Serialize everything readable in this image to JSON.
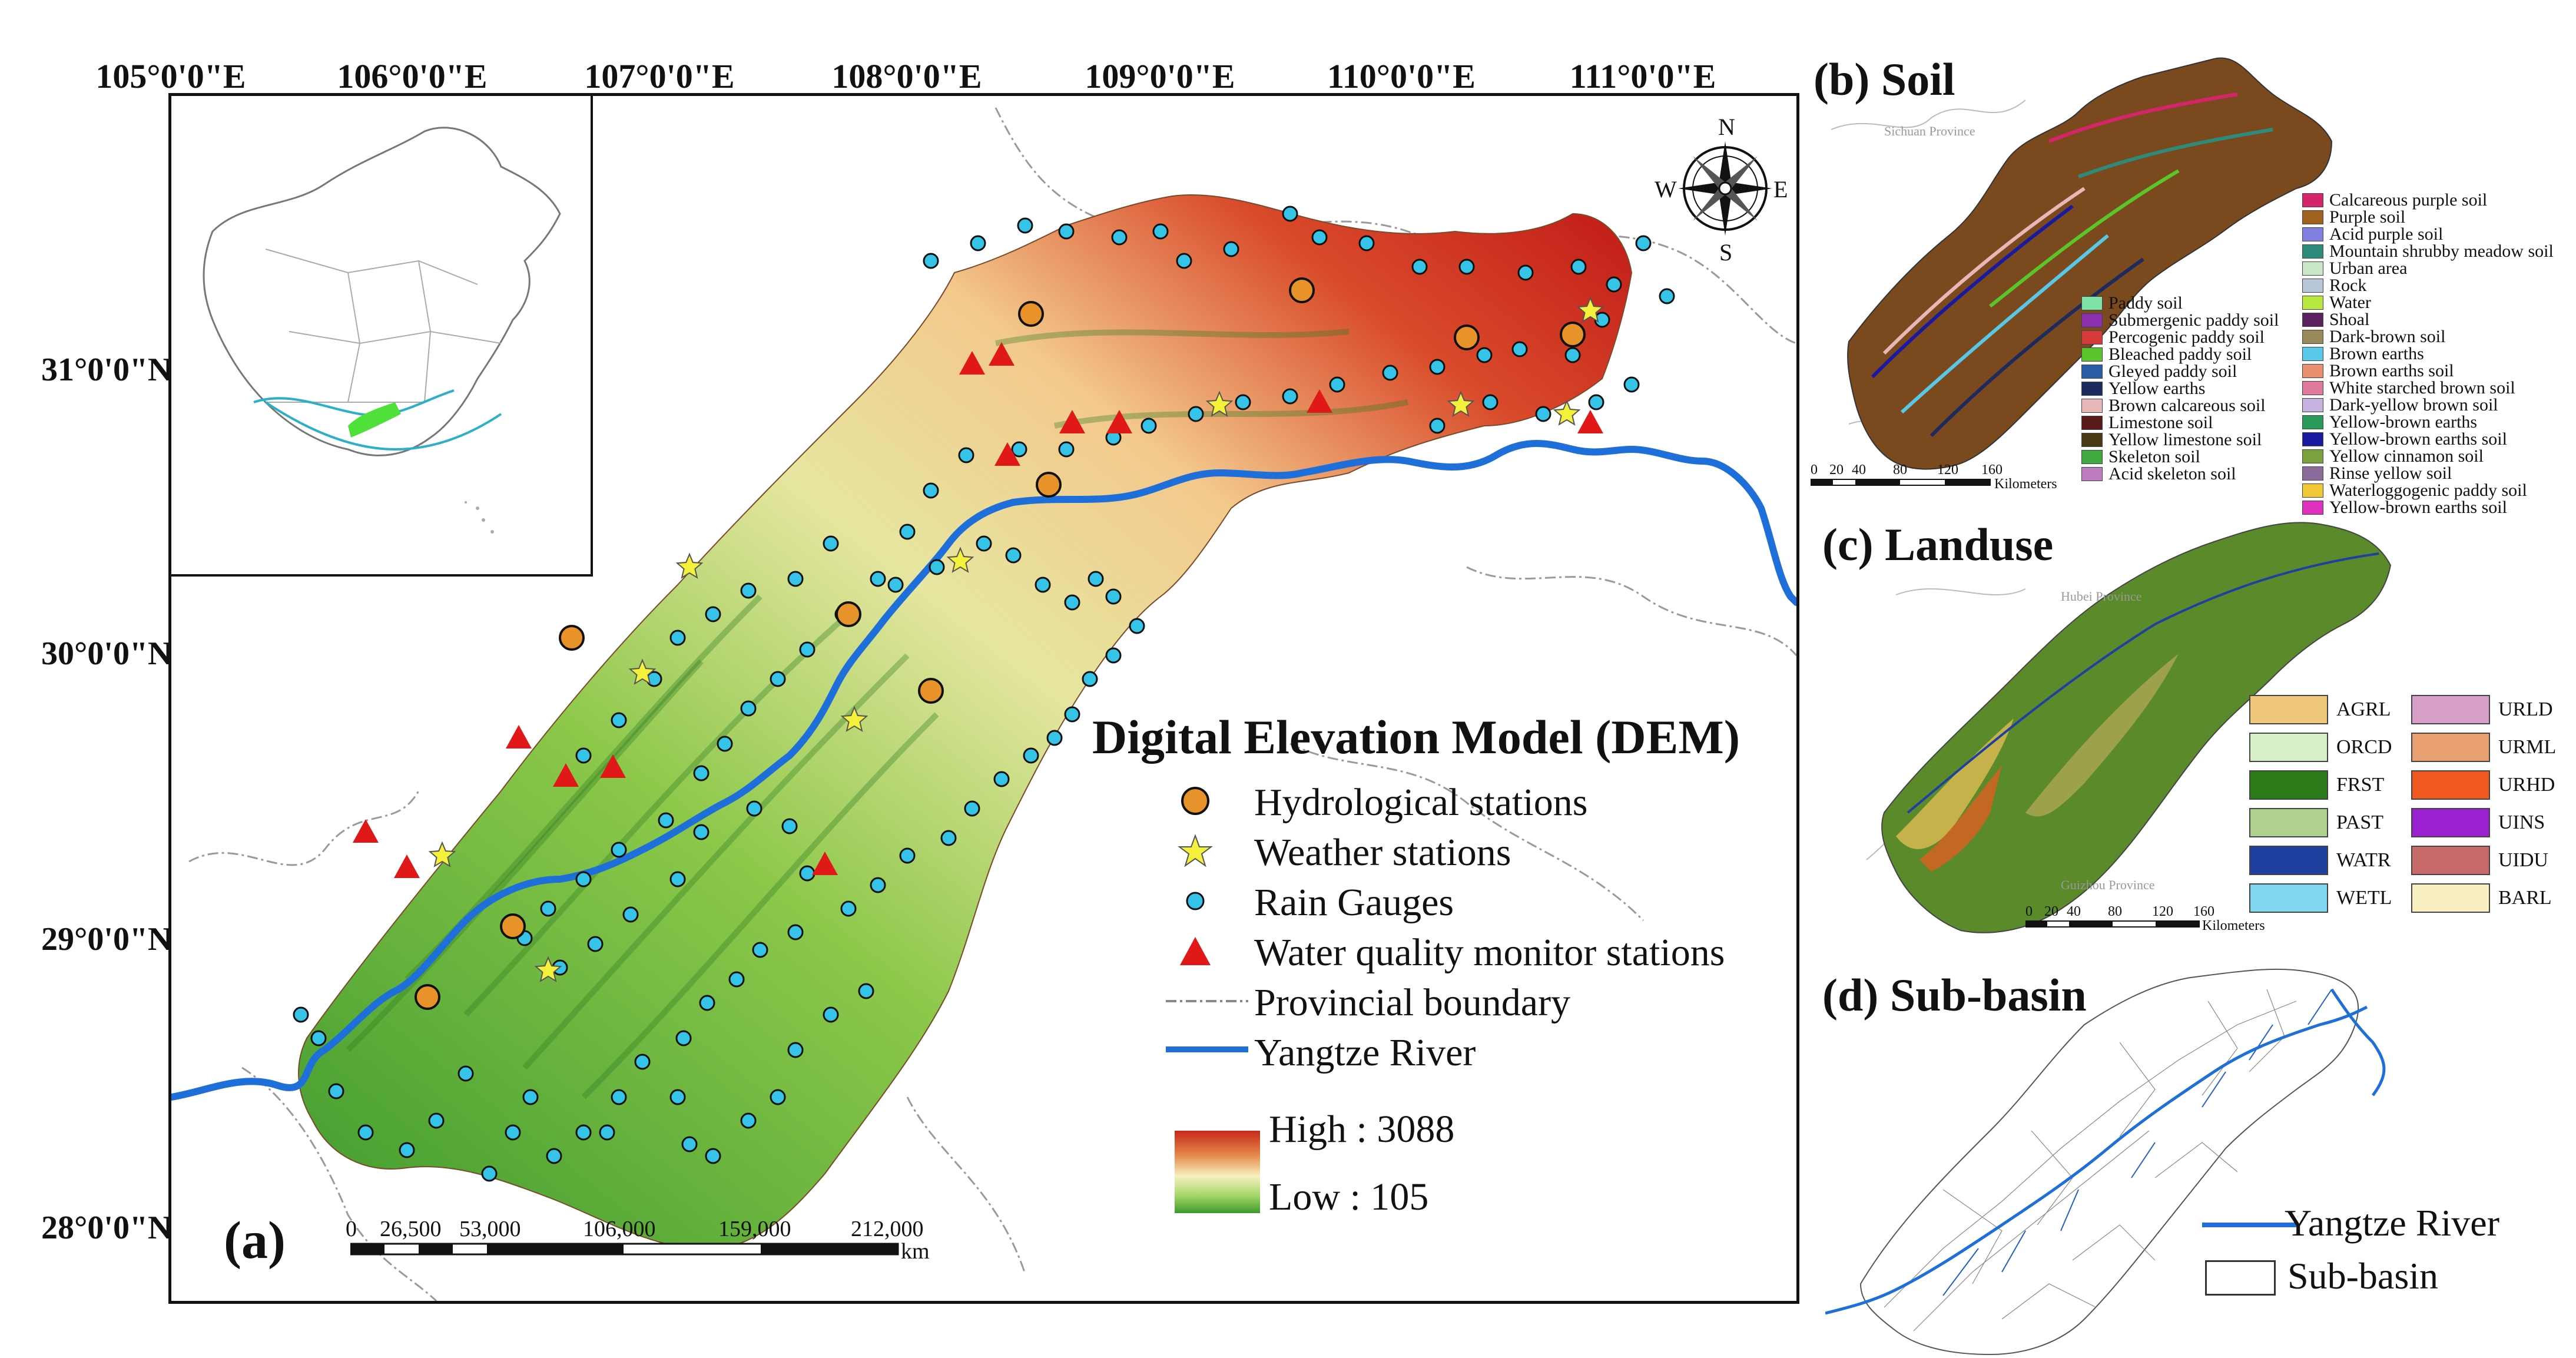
{
  "main_panel": {
    "panel_label": "(a)",
    "longitude_ticks": [
      "105°0'0\"E",
      "106°0'0\"E",
      "107°0'0\"E",
      "108°0'0\"E",
      "109°0'0\"E",
      "110°0'0\"E",
      "111°0'0\"E"
    ],
    "latitude_ticks": [
      "31°0'0\"N",
      "30°0'0\"N",
      "29°0'0\"N",
      "28°0'0\"N"
    ],
    "compass": {
      "n": "N",
      "s": "S",
      "e": "E",
      "w": "W"
    },
    "legend": {
      "title": "Digital Elevation Model (DEM)",
      "hydrological": "Hydrological stations",
      "weather": "Weather stations",
      "rain": "Rain Gauges",
      "water_quality": "Water quality monitor stations",
      "boundary": "Provincial boundary",
      "river": "Yangtze River",
      "high": "High : 3088",
      "low": "Low : 105"
    },
    "scale": {
      "ticks": [
        "0",
        "26,500",
        "53,000",
        "106,000",
        "159,000",
        "212,000"
      ],
      "unit": "km"
    },
    "colors": {
      "river": "#1e6fd9",
      "hydro": "#e8922a",
      "weather": "#f5f03a",
      "rain": "#35c3e8",
      "wq": "#e01818"
    }
  },
  "soil_panel": {
    "title": "(b) Soil",
    "province": "Sichuan Province",
    "legend_left": [
      "Paddy soil",
      "Submergenic paddy soil",
      "Percogenic paddy soil",
      "Bleached paddy soil",
      "Gleyed paddy soil",
      "Yellow earths",
      "Brown calcareous soil",
      "Limestone soil",
      "Yellow limestone soil",
      "Skeleton soil",
      "Acid skeleton soil"
    ],
    "legend_left_colors": [
      "#7de3a8",
      "#8b2fb0",
      "#d63a3a",
      "#5ac62a",
      "#2b5ca8",
      "#1c2a5e",
      "#e8b8b8",
      "#5a1a1a",
      "#4a3a14",
      "#3fa83f",
      "#c07cc0"
    ],
    "legend_right": [
      "Calcareous purple soil",
      "Purple soil",
      "Acid purple soil",
      "Mountain shrubby meadow soil",
      "Urban area",
      "Rock",
      "Water",
      "Shoal",
      "Dark-brown soil",
      "Brown earths",
      "Brown earths soil",
      "White starched brown soil",
      "Dark-yellow brown soil",
      "Yellow-brown earths",
      "Yellow-brown earths soil",
      "Yellow cinnamon soil",
      "Rinse yellow soil",
      "Waterloggogenic paddy soil",
      "Yellow-brown earths soil"
    ],
    "legend_right_colors": [
      "#d6246a",
      "#a0601e",
      "#7f7fe0",
      "#2e8a7a",
      "#c8e8c8",
      "#b8c8d8",
      "#b8e840",
      "#5a2060",
      "#9a8a5a",
      "#58c8e8",
      "#e89070",
      "#e07a9a",
      "#c8b0e0",
      "#2a9a5a",
      "#1a1aa0",
      "#7aa040",
      "#8a6a9a",
      "#f0c838",
      "#e030c0"
    ],
    "scale": {
      "ticks": [
        "0",
        "20",
        "40",
        "80",
        "120",
        "160"
      ],
      "unit": "Kilometers"
    }
  },
  "landuse_panel": {
    "title": "(c) Landuse",
    "province_top": "Hubei Province",
    "province_bottom": "Guizhou Province",
    "classes": [
      {
        "code": "AGRL",
        "color": "#f0c87a"
      },
      {
        "code": "URLD",
        "color": "#d8a0c8"
      },
      {
        "code": "ORCD",
        "color": "#d8f0c8"
      },
      {
        "code": "URML",
        "color": "#e8a070"
      },
      {
        "code": "FRST",
        "color": "#2a7a1a"
      },
      {
        "code": "URHD",
        "color": "#f05a20"
      },
      {
        "code": "PAST",
        "color": "#b0d090"
      },
      {
        "code": "UINS",
        "color": "#9a20d0"
      },
      {
        "code": "WATR",
        "color": "#2040a0"
      },
      {
        "code": "UIDU",
        "color": "#c86a6a"
      },
      {
        "code": "WETL",
        "color": "#80d8f0"
      },
      {
        "code": "BARL",
        "color": "#f8f0c0"
      }
    ],
    "scale": {
      "ticks": [
        "0",
        "20",
        "40",
        "80",
        "120",
        "160"
      ],
      "unit": "Kilometers"
    }
  },
  "subbasin_panel": {
    "title": "(d) Sub-basin",
    "legend_river": "Yangtze River",
    "legend_subbasin": "Sub-basin"
  }
}
